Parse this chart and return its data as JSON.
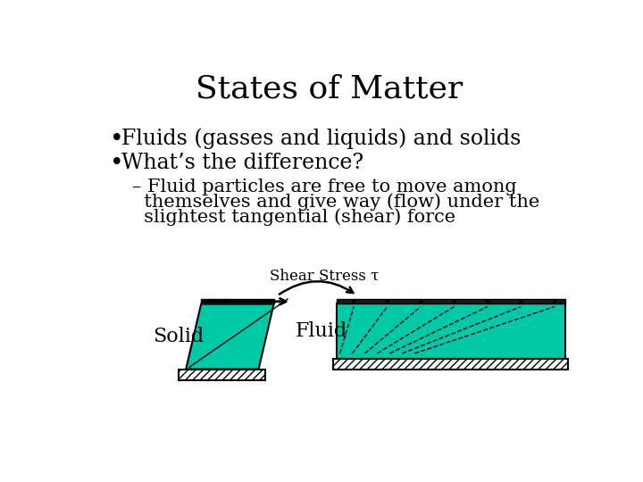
{
  "title": "States of Matter",
  "bullet1": "Fluids (gasses and liquids) and solids",
  "bullet2": "What’s the difference?",
  "sub_line1": "– Fluid particles are free to move among",
  "sub_line2": "  themselves and give way (flow) under the",
  "sub_line3": "  slightest tangential (shear) force",
  "shear_label": "Shear Stress τ",
  "solid_label": "Solid",
  "fluid_label": "Fluid",
  "teal_color": "#00c9a7",
  "dark_plate": "#1a1a1a",
  "text_color": "#000000",
  "title_fontsize": 26,
  "bullet_fontsize": 17,
  "sub_fontsize": 15,
  "label_fontsize": 16
}
